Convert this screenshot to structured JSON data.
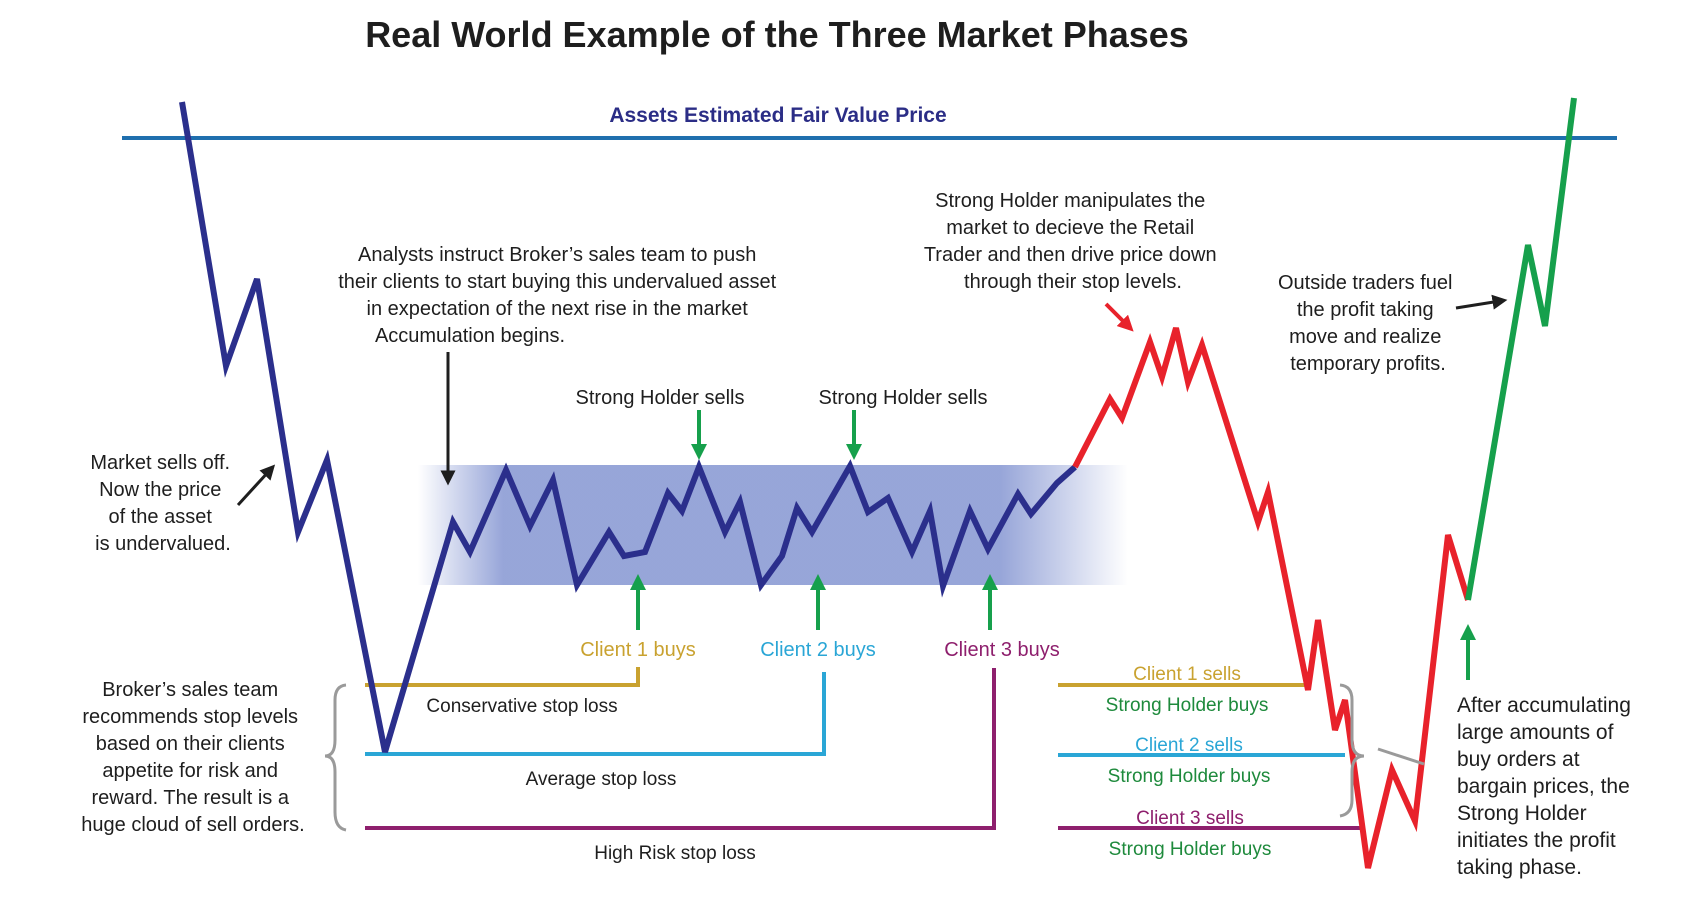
{
  "title": "Real World Example of the Three Market Phases",
  "fair_value": {
    "label": "Assets Estimated Fair Value Price",
    "color": "#1f6fae"
  },
  "colors": {
    "decline": "#2b2f8c",
    "manipulation": "#e8222b",
    "profit": "#16a04c",
    "band": "#7d8fcf",
    "client1": "#c9a230",
    "client2": "#2aa6d6",
    "client3": "#8e1f6d",
    "strong_holder": "#1e8a3c",
    "arrow_green": "#16a04c",
    "arrow_dark": "#1e1e1e",
    "arrow_red": "#e8222b",
    "bracket": "#9a9a9a"
  },
  "annotations": {
    "market_sells_off": [
      "Market sells off.",
      "Now the price",
      "of the asset",
      "is undervalued."
    ],
    "analysts": [
      "Analysts instruct Broker’s sales team to push",
      "their clients to start buying this undervalued asset",
      "in expectation of the next rise in the market",
      "Accumulation begins."
    ],
    "strong_holder_manipulates": [
      "Strong Holder manipulates the",
      "market to decieve the Retail",
      "Trader and then drive price down",
      "through their stop levels."
    ],
    "outside_traders": [
      "Outside traders fuel",
      "the profit taking",
      "move and realize",
      "temporary profits."
    ],
    "broker_sales_team": [
      "Broker’s sales team",
      "recommends stop levels",
      "based on their clients",
      "appetite for risk and",
      "reward.  The result is a",
      "huge cloud of sell orders."
    ],
    "after_accumulating": [
      "After accumulating",
      "large amounts of",
      "buy orders at",
      "bargain prices, the",
      "Strong Holder",
      "initiates the profit",
      "taking phase."
    ]
  },
  "strong_holder_sells": [
    "Strong Holder sells",
    "Strong Holder sells"
  ],
  "client_buys": [
    "Client 1 buys",
    "Client 2 buys",
    "Client 3 buys"
  ],
  "stop_losses": [
    "Conservative stop loss",
    "Average stop loss",
    "High Risk stop loss"
  ],
  "client_sells": [
    "Client 1 sells",
    "Client 2 sells",
    "Client 3 sells"
  ],
  "strong_holder_buys": [
    "Strong Holder buys",
    "Strong Holder buys",
    "Strong Holder buys"
  ]
}
